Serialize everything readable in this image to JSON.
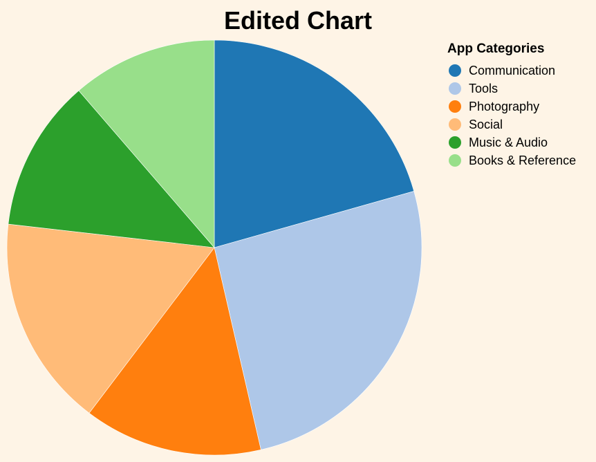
{
  "chart_data": {
    "type": "pie",
    "title": "Edited Chart",
    "legend_title": "App Categories",
    "legend_position": "top-right",
    "start_angle": "12 o'clock",
    "direction": "clockwise",
    "categories": [
      "Communication",
      "Tools",
      "Photography",
      "Social",
      "Music & Audio",
      "Books & Reference"
    ],
    "values": [
      20,
      25,
      13.5,
      16,
      11.5,
      11
    ],
    "colors": [
      "#1f77b4",
      "#aec7e8",
      "#ff7f0e",
      "#ffbb78",
      "#2ca02c",
      "#98df8a"
    ]
  }
}
